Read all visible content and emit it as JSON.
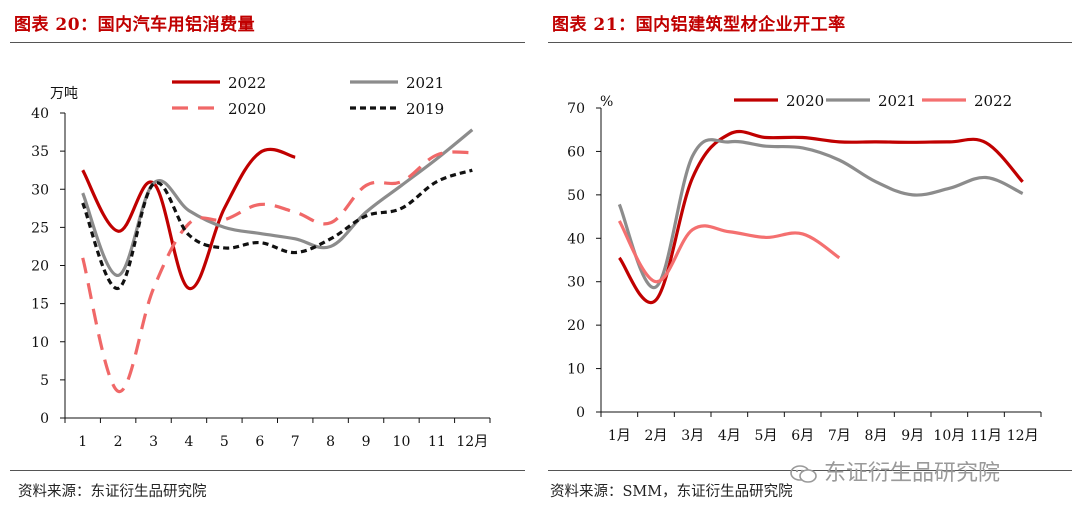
{
  "left_panel": {
    "title": "图表 20：国内汽车用铝消费量",
    "source": "资料来源：东证衍生品研究院"
  },
  "right_panel": {
    "title": "图表 21：国内铝建筑型材企业开工率",
    "source": "资料来源：SMM，东证衍生品研究院"
  },
  "watermark": "东证衍生品研究院",
  "chart_data": [
    {
      "type": "line",
      "title": "国内汽车用铝消费量",
      "ylabel": "万吨",
      "xlabel": "",
      "x": [
        "1",
        "2",
        "3",
        "4",
        "5",
        "6",
        "7",
        "8",
        "9",
        "10",
        "11",
        "12月"
      ],
      "ylim": [
        0,
        40
      ],
      "yticks": [
        0,
        5,
        10,
        15,
        20,
        25,
        30,
        35,
        40
      ],
      "grid": false,
      "legend_position": "top",
      "series": [
        {
          "name": "2022",
          "color": "#c00000",
          "dash": "solid",
          "values": [
            32.5,
            24.5,
            30.8,
            17.0,
            27.5,
            34.8,
            34.2,
            null,
            null,
            null,
            null,
            null
          ]
        },
        {
          "name": "2021",
          "color": "#8c8c8c",
          "dash": "solid",
          "values": [
            29.5,
            18.7,
            30.8,
            27.2,
            25.0,
            24.2,
            23.5,
            22.5,
            27.0,
            30.5,
            34.0,
            37.8
          ]
        },
        {
          "name": "2020",
          "color": "#f06868",
          "dash": "dashed",
          "values": [
            21.0,
            3.5,
            17.0,
            25.5,
            26.0,
            28.0,
            27.0,
            25.6,
            30.5,
            31.0,
            34.5,
            34.8
          ]
        },
        {
          "name": "2019",
          "color": "#111111",
          "dash": "dotted",
          "values": [
            28.2,
            17.0,
            30.7,
            24.0,
            22.3,
            23.0,
            21.7,
            23.5,
            26.5,
            27.5,
            31.0,
            32.5
          ]
        }
      ]
    },
    {
      "type": "line",
      "title": "国内铝建筑型材企业开工率",
      "ylabel": "%",
      "xlabel": "",
      "x": [
        "1月",
        "2月",
        "3月",
        "4月",
        "5月",
        "6月",
        "7月",
        "8月",
        "9月",
        "10月",
        "11月",
        "12月"
      ],
      "ylim": [
        0,
        70
      ],
      "yticks": [
        0,
        10,
        20,
        30,
        40,
        50,
        60,
        70
      ],
      "grid": false,
      "legend_position": "top",
      "series": [
        {
          "name": "2020",
          "color": "#c00000",
          "dash": "solid",
          "values": [
            35.5,
            25.8,
            54.0,
            64.0,
            63.2,
            63.2,
            62.2,
            62.2,
            62.1,
            62.2,
            62.0,
            53.0
          ]
        },
        {
          "name": "2021",
          "color": "#8c8c8c",
          "dash": "solid",
          "values": [
            47.8,
            28.8,
            59.0,
            62.2,
            61.2,
            60.8,
            58.0,
            53.0,
            50.0,
            51.5,
            54.0,
            50.3
          ]
        },
        {
          "name": "2022",
          "color": "#f47070",
          "dash": "solid",
          "values": [
            44.0,
            30.0,
            42.0,
            41.5,
            40.2,
            41.0,
            35.5,
            null,
            null,
            null,
            null,
            null
          ]
        }
      ]
    }
  ]
}
